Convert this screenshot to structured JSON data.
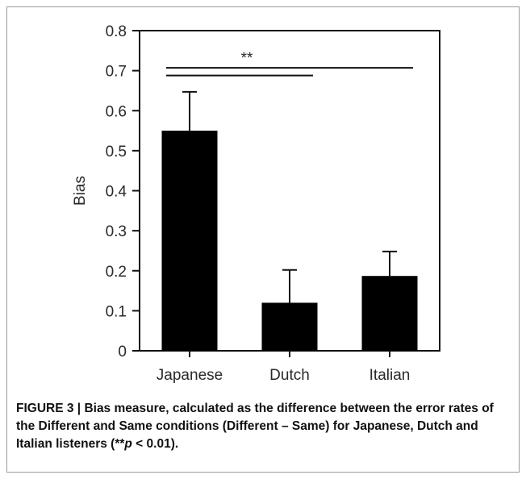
{
  "chart_data": {
    "type": "bar",
    "categories": [
      "Japanese",
      "Dutch",
      "Italian"
    ],
    "values": [
      0.55,
      0.12,
      0.187
    ],
    "error_upper": [
      0.647,
      0.202,
      0.248
    ],
    "ylabel": "Bias",
    "xlabel": "",
    "ylim": [
      0,
      0.8
    ],
    "yticks": [
      "0",
      "0.1",
      "0.2",
      "0.3",
      "0.4",
      "0.5",
      "0.6",
      "0.7",
      "0.8"
    ],
    "annotations": [
      {
        "text": "**",
        "from": "Japanese",
        "to": "Italian",
        "level": 0.707
      },
      {
        "text": "",
        "from": "Japanese",
        "to": "Dutch",
        "level": 0.688
      }
    ],
    "grid": false,
    "bar_color": "#000000"
  },
  "caption": {
    "label": "FIGURE 3 | ",
    "text": "Bias measure, calculated as the difference between the error rates of the Different and Same conditions (Different – Same) for Japanese, Dutch and Italian listeners (**",
    "p_symbol": "p",
    "p_rest": " < 0.01)."
  }
}
